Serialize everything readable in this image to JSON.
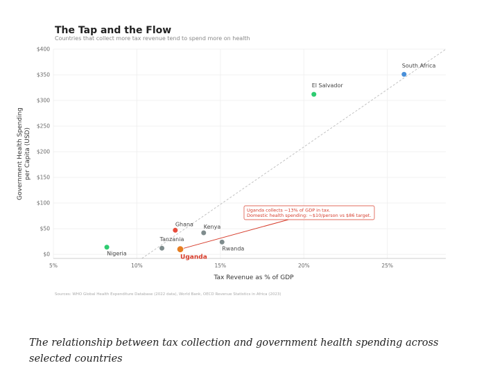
{
  "chart_data": {
    "type": "scatter",
    "title": "The Tap and the Flow",
    "subtitle": "Countries that collect more tax revenue tend to spend more on health",
    "xlabel": "Tax Revenue as % of GDP",
    "ylabel_lines": [
      "Government Health Spending",
      "per Capita (USD)"
    ],
    "xlim": [
      5,
      28.5
    ],
    "ylim": [
      -8,
      400
    ],
    "x_ticks": [
      5,
      10,
      15,
      20,
      25
    ],
    "x_tick_labels": [
      "5%",
      "10%",
      "15%",
      "20%",
      "25%"
    ],
    "y_ticks": [
      0,
      50,
      100,
      150,
      200,
      250,
      300,
      350,
      400
    ],
    "y_tick_labels": [
      "$0",
      "$50",
      "$100",
      "$150",
      "$200",
      "$250",
      "$300",
      "$350",
      "$400"
    ],
    "grid": true,
    "trendline": {
      "x": [
        10.3,
        28.5
      ],
      "y": [
        -8,
        400
      ]
    },
    "points": [
      {
        "name": "South Africa",
        "x": 26,
        "y": 351,
        "color": "#4a90d9",
        "label_pos": "above"
      },
      {
        "name": "El Salvador",
        "x": 20.6,
        "y": 312,
        "color": "#2ecc71",
        "label_pos": "above"
      },
      {
        "name": "Ghana",
        "x": 12.3,
        "y": 47,
        "color": "#e74c3c",
        "label_pos": "above-right"
      },
      {
        "name": "Kenya",
        "x": 14,
        "y": 42,
        "color": "#7f8c8d",
        "label_pos": "above-right"
      },
      {
        "name": "Tanzania",
        "x": 11.5,
        "y": 12,
        "color": "#7f8c8d",
        "label_pos": "above"
      },
      {
        "name": "Rwanda",
        "x": 15.1,
        "y": 24,
        "color": "#7f8c8d",
        "label_pos": "below-right"
      },
      {
        "name": "Nigeria",
        "x": 8.2,
        "y": 14,
        "color": "#2ecc71",
        "label_pos": "below-right"
      }
    ],
    "highlight": {
      "name": "Uganda",
      "x": 12.6,
      "y": 10,
      "color": "#e67e22"
    },
    "annotation": {
      "lines": [
        "Uganda collects ~13% of GDP in tax.",
        "Domestic health spending: ~$10/person vs $86 target."
      ],
      "x": 16.5,
      "y": 92,
      "color": "#d63b2a"
    },
    "source": "Sources: WHO Global Health Expenditure Database (2022 data), World Bank, OECD Revenue Statistics in Africa (2023)"
  },
  "caption": "The relationship between tax collection and government health spending across selected countries"
}
